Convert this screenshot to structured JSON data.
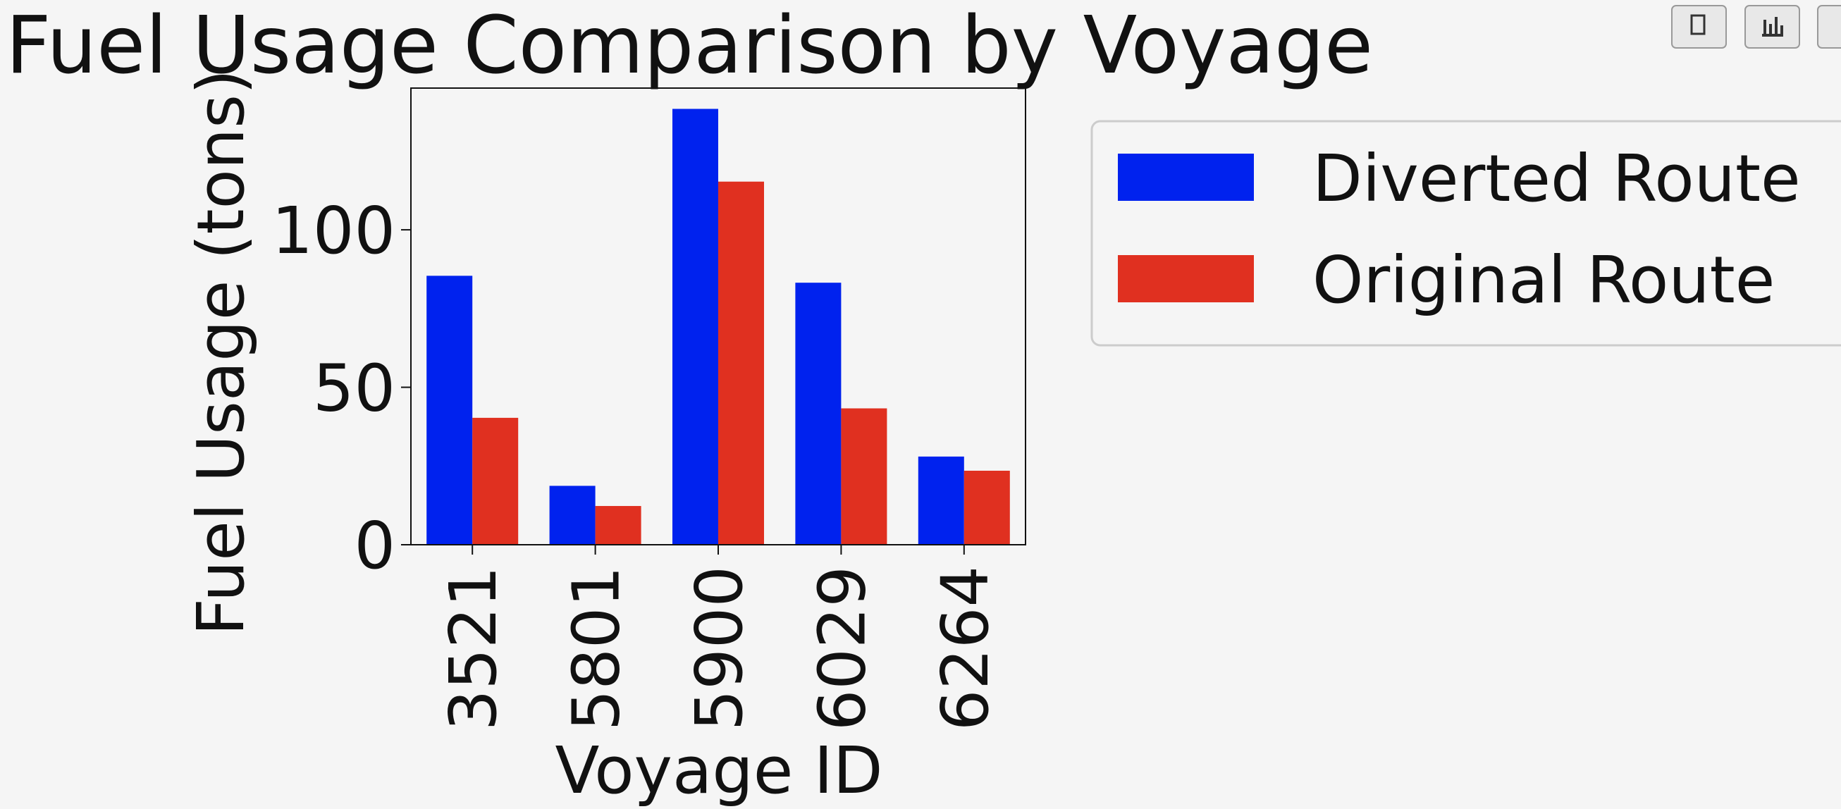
{
  "chart_data": {
    "type": "bar",
    "title": "Fuel Usage Comparison by Voyage",
    "x_label": "Voyage ID",
    "y_label": "Fuel Usage (tons)",
    "categories": [
      "3521",
      "5801",
      "5900",
      "6029",
      "6264"
    ],
    "series": [
      {
        "name": "Diverted Route",
        "color": "#0022ee",
        "values": [
          85.4,
          18.7,
          138.4,
          83.2,
          28.0
        ]
      },
      {
        "name": "Original Route",
        "color": "#e03020",
        "values": [
          40.3,
          12.3,
          115.3,
          43.3,
          23.5
        ]
      }
    ],
    "ylim": [
      0,
      145
    ],
    "yticks": [
      0,
      50,
      100
    ]
  }
}
